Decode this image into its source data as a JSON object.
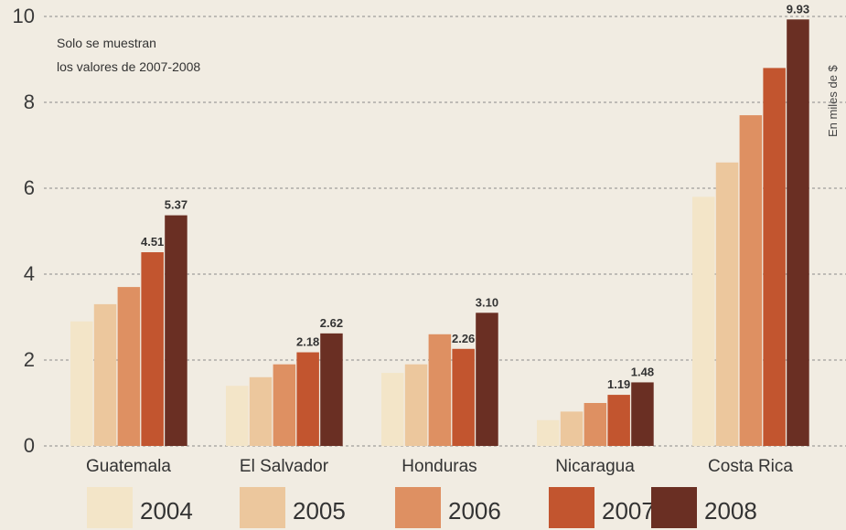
{
  "chart_data": {
    "type": "bar",
    "categories": [
      "Guatemala",
      "El Salvador",
      "Honduras",
      "Nicaragua",
      "Costa Rica"
    ],
    "series": [
      {
        "name": "2004",
        "color": "#f3e5c8",
        "values": [
          2.9,
          1.4,
          1.7,
          0.6,
          5.8
        ]
      },
      {
        "name": "2005",
        "color": "#ecc79d",
        "values": [
          3.3,
          1.6,
          1.9,
          0.8,
          6.6
        ]
      },
      {
        "name": "2006",
        "color": "#de9062",
        "values": [
          3.7,
          1.9,
          2.6,
          1.0,
          7.7
        ]
      },
      {
        "name": "2007",
        "color": "#c2552f",
        "values": [
          4.51,
          2.18,
          2.26,
          1.19,
          8.8
        ]
      },
      {
        "name": "2008",
        "color": "#6a2f23",
        "values": [
          5.37,
          2.62,
          3.1,
          1.48,
          9.93
        ]
      }
    ],
    "data_labels": {
      "2007": [
        "4.51",
        "2.18",
        "2.26",
        "1.19",
        ""
      ],
      "2008": [
        "5.37",
        "2.62",
        "3.10",
        "1.48",
        "9.93"
      ]
    },
    "yticks": [
      "0",
      "2",
      "4",
      "6",
      "8",
      "10"
    ],
    "ylim": [
      0,
      10
    ],
    "ylabel": "En miles de $",
    "note_lines": [
      "Solo se muestran",
      "los valores de 2007-2008"
    ],
    "legend_position": "bottom",
    "grid": true
  }
}
